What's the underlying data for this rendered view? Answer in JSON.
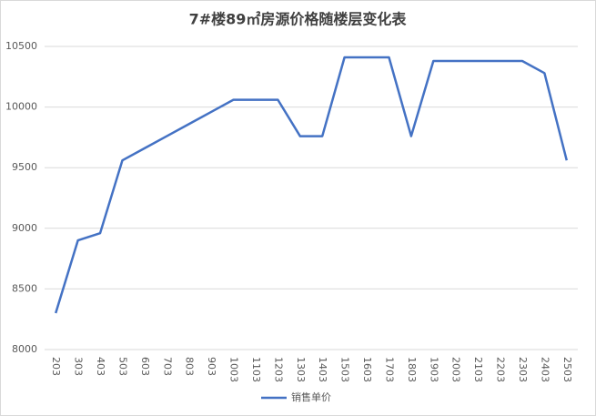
{
  "chart_data": {
    "type": "line",
    "title": "7#楼89㎡房源价格随楼层变化表",
    "categories": [
      "203",
      "303",
      "403",
      "503",
      "603",
      "703",
      "803",
      "903",
      "1003",
      "1103",
      "1203",
      "1303",
      "1403",
      "1503",
      "1603",
      "1703",
      "1803",
      "1903",
      "2003",
      "2103",
      "2203",
      "2303",
      "2403",
      "2503"
    ],
    "series": [
      {
        "name": "销售单价",
        "color": "#4472c4",
        "values": [
          8300,
          8900,
          8960,
          9560,
          9660,
          9760,
          9860,
          9960,
          10060,
          10060,
          10060,
          9760,
          9760,
          10410,
          10410,
          10410,
          9760,
          10380,
          10380,
          10380,
          10380,
          10380,
          10280,
          9560
        ]
      }
    ],
    "ylim": [
      8000,
      10500
    ],
    "yticks": [
      8000,
      8500,
      9000,
      9500,
      10000,
      10500
    ],
    "grid": true,
    "legend": "bottom"
  }
}
